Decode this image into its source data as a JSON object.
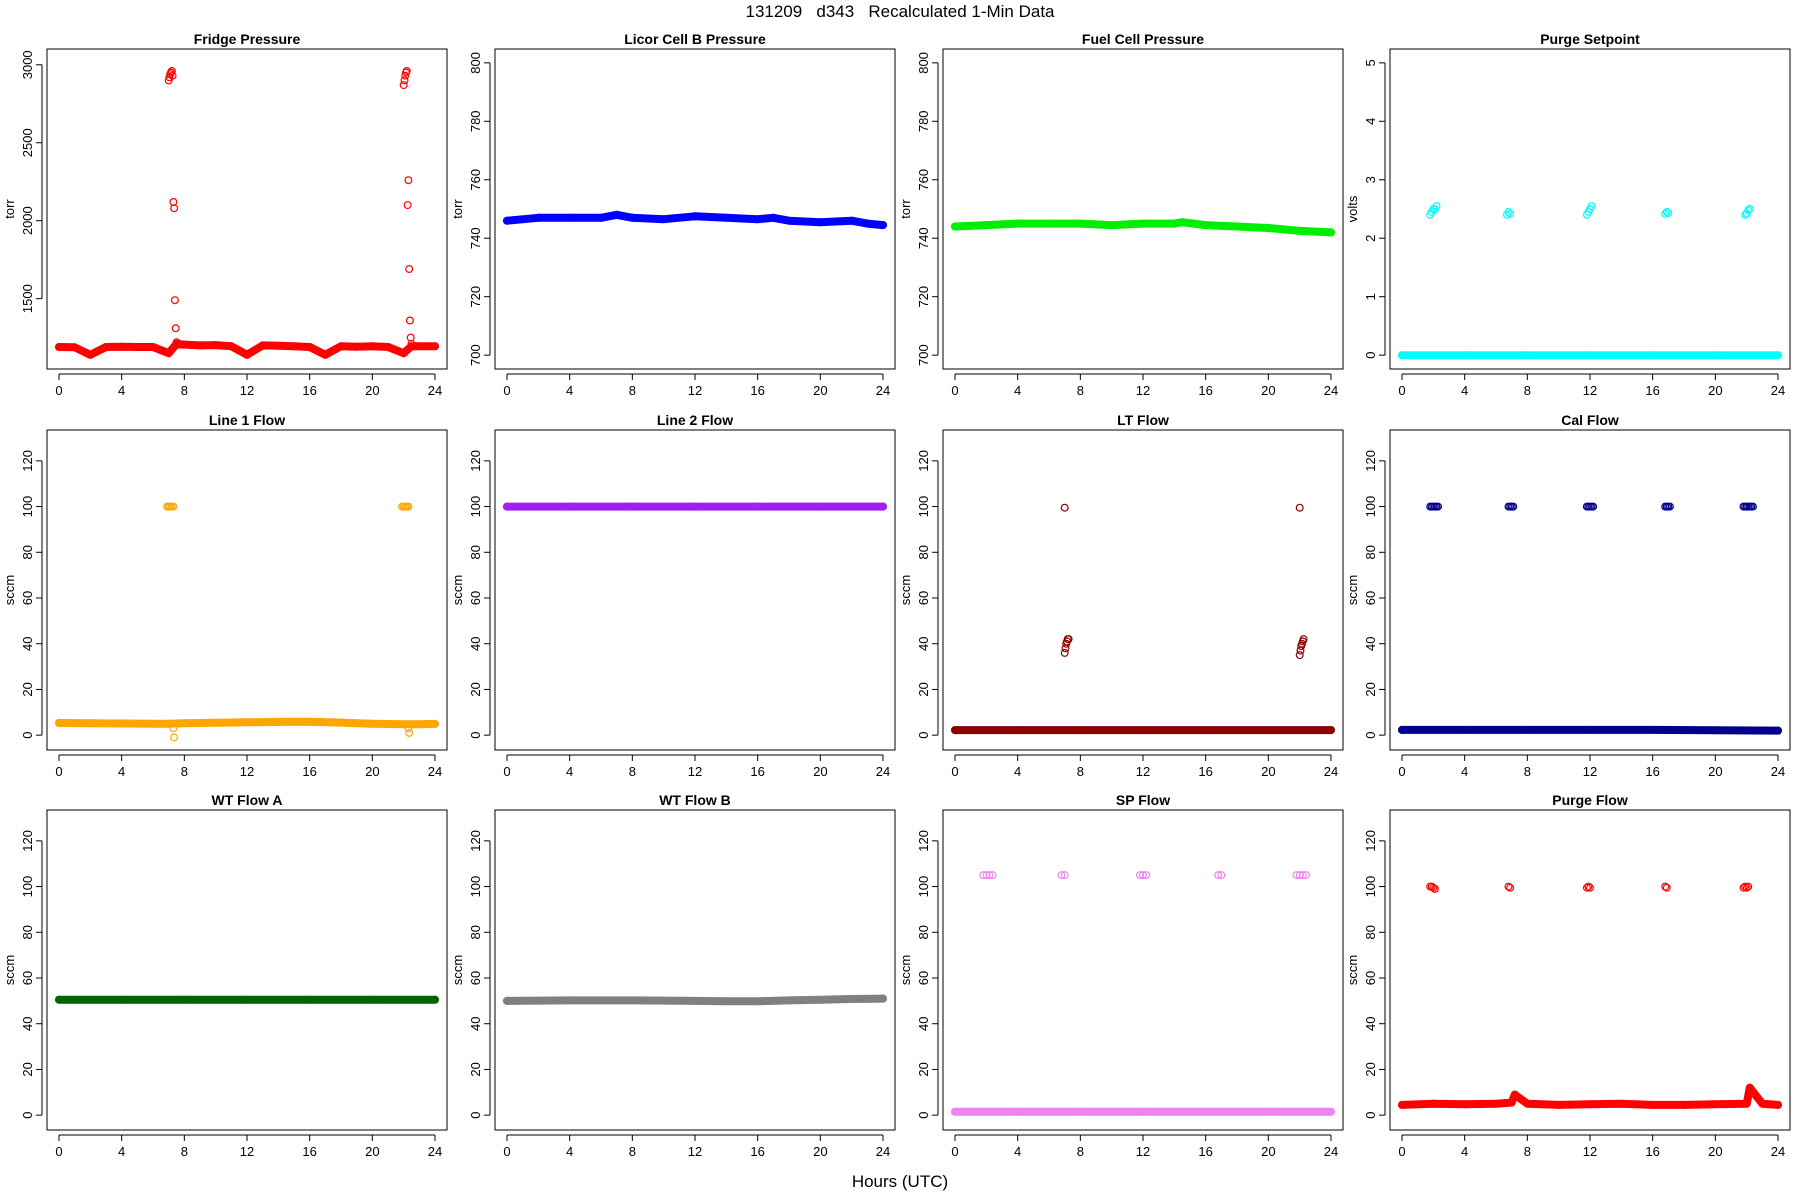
{
  "figure": {
    "title": "131209   d343   Recalculated 1-Min Data",
    "x_axis_label": "Hours (UTC)"
  },
  "chart_data": [
    {
      "type": "scatter",
      "title": "Fridge Pressure",
      "ylabel": "torr",
      "color": "#ff0000",
      "xlim": [
        0,
        24
      ],
      "ylim": [
        1100,
        3050
      ],
      "xticks": [
        0,
        4,
        8,
        12,
        16,
        20,
        24
      ],
      "yticks": [
        1500,
        2000,
        2500,
        3000
      ],
      "series": [
        {
          "x": [
            0,
            1,
            2,
            3,
            4,
            5,
            6,
            7,
            7.5,
            8,
            9,
            10,
            11,
            12,
            13,
            14,
            15,
            16,
            17,
            18,
            19,
            20,
            21,
            22,
            22.5,
            23,
            24
          ],
          "y": [
            1190,
            1188,
            1140,
            1190,
            1192,
            1190,
            1190,
            1150,
            1210,
            1205,
            1200,
            1202,
            1195,
            1140,
            1200,
            1198,
            1195,
            1190,
            1140,
            1195,
            1192,
            1195,
            1190,
            1150,
            1195,
            1195,
            1195
          ]
        },
        {
          "x": [
            7.0,
            7.05,
            7.1,
            7.15,
            7.2,
            7.25,
            7.3,
            7.35
          ],
          "y": [
            2900,
            2920,
            2940,
            2950,
            2960,
            2930,
            2120,
            2080
          ]
        },
        {
          "x": [
            7.4,
            7.45,
            7.5
          ],
          "y": [
            1490,
            1310,
            1220
          ]
        },
        {
          "x": [
            22.0,
            22.05,
            22.1,
            22.15,
            22.2,
            22.25,
            22.3,
            22.35,
            22.4,
            22.45,
            22.5
          ],
          "y": [
            2870,
            2900,
            2930,
            2950,
            2960,
            2100,
            2260,
            1690,
            1360,
            1250,
            1210
          ]
        }
      ]
    },
    {
      "type": "scatter",
      "title": "Licor Cell B Pressure",
      "ylabel": "torr",
      "color": "#0000ff",
      "xlim": [
        0,
        24
      ],
      "ylim": [
        698,
        802
      ],
      "xticks": [
        0,
        4,
        8,
        12,
        16,
        20,
        24
      ],
      "yticks": [
        700,
        720,
        740,
        760,
        780,
        800
      ],
      "series": [
        {
          "x": [
            0,
            2,
            4,
            6,
            7,
            8,
            10,
            12,
            14,
            16,
            17,
            18,
            20,
            22,
            23,
            24
          ],
          "y": [
            746,
            747,
            747,
            747,
            748,
            747,
            746.5,
            747.5,
            747,
            746.5,
            747,
            746,
            745.5,
            746,
            745,
            744.5
          ]
        }
      ]
    },
    {
      "type": "scatter",
      "title": "Fuel Cell Pressure",
      "ylabel": "torr",
      "color": "#00ee00",
      "xlim": [
        0,
        24
      ],
      "ylim": [
        698,
        802
      ],
      "xticks": [
        0,
        4,
        8,
        12,
        16,
        20,
        24
      ],
      "yticks": [
        700,
        720,
        740,
        760,
        780,
        800
      ],
      "series": [
        {
          "x": [
            0,
            2,
            4,
            6,
            8,
            10,
            12,
            14,
            14.5,
            16,
            18,
            20,
            22,
            24
          ],
          "y": [
            744,
            744.5,
            745,
            745,
            745,
            744.5,
            745,
            745,
            745.5,
            744.5,
            744,
            743.5,
            742.5,
            742
          ]
        }
      ]
    },
    {
      "type": "scatter",
      "title": "Purge Setpoint",
      "ylabel": "volts",
      "color": "#00ffff",
      "xlim": [
        0,
        24
      ],
      "ylim": [
        -0.1,
        5.1
      ],
      "xticks": [
        0,
        4,
        8,
        12,
        16,
        20,
        24
      ],
      "yticks": [
        0,
        1,
        2,
        3,
        4,
        5
      ],
      "series": [
        {
          "x": [
            0,
            4,
            8,
            12,
            16,
            20,
            24
          ],
          "y": [
            0,
            0,
            0,
            0,
            0,
            0,
            0
          ]
        },
        {
          "x": [
            1.8,
            1.9,
            2.0,
            2.1,
            2.2
          ],
          "y": [
            2.4,
            2.45,
            2.5,
            2.5,
            2.55
          ]
        },
        {
          "x": [
            6.7,
            6.8,
            6.9
          ],
          "y": [
            2.4,
            2.45,
            2.42
          ]
        },
        {
          "x": [
            11.8,
            11.9,
            12.0,
            12.1
          ],
          "y": [
            2.4,
            2.45,
            2.5,
            2.55
          ]
        },
        {
          "x": [
            16.8,
            16.9,
            17.0
          ],
          "y": [
            2.42,
            2.45,
            2.43
          ]
        },
        {
          "x": [
            21.9,
            22.0,
            22.1,
            22.2
          ],
          "y": [
            2.4,
            2.42,
            2.48,
            2.5
          ]
        }
      ]
    },
    {
      "type": "scatter",
      "title": "Line 1 Flow",
      "ylabel": "sccm",
      "color": "#ffa500",
      "xlim": [
        0,
        24
      ],
      "ylim": [
        -3,
        130
      ],
      "xticks": [
        0,
        4,
        8,
        12,
        16,
        20,
        24
      ],
      "yticks": [
        0,
        20,
        40,
        60,
        80,
        100,
        120
      ],
      "series": [
        {
          "x": [
            0,
            2,
            4,
            6,
            7,
            8,
            10,
            12,
            14,
            16,
            18,
            20,
            22,
            23,
            24
          ],
          "y": [
            5.3,
            5.2,
            5.1,
            5.0,
            5.0,
            5.2,
            5.4,
            5.6,
            5.8,
            5.9,
            5.5,
            5.0,
            4.8,
            4.8,
            4.9
          ]
        },
        {
          "x": [
            6.9,
            7.0,
            7.1,
            7.2,
            7.3
          ],
          "y": [
            100,
            100,
            100,
            100,
            100
          ]
        },
        {
          "x": [
            7.3,
            7.35
          ],
          "y": [
            3,
            -1
          ]
        },
        {
          "x": [
            21.9,
            22.0,
            22.1,
            22.2,
            22.3
          ],
          "y": [
            100,
            100,
            100,
            100,
            100
          ]
        },
        {
          "x": [
            22.3,
            22.35
          ],
          "y": [
            3,
            1
          ]
        }
      ]
    },
    {
      "type": "scatter",
      "title": "Line 2 Flow",
      "ylabel": "sccm",
      "color": "#a020f0",
      "xlim": [
        0,
        24
      ],
      "ylim": [
        -3,
        130
      ],
      "xticks": [
        0,
        4,
        8,
        12,
        16,
        20,
        24
      ],
      "yticks": [
        0,
        20,
        40,
        60,
        80,
        100,
        120
      ],
      "series": [
        {
          "x": [
            0,
            4,
            8,
            12,
            16,
            20,
            24
          ],
          "y": [
            100,
            100,
            100,
            100,
            100,
            100,
            100
          ]
        }
      ]
    },
    {
      "type": "scatter",
      "title": "LT Flow",
      "ylabel": "sccm",
      "color": "#8b0000",
      "xlim": [
        0,
        24
      ],
      "ylim": [
        -3,
        130
      ],
      "xticks": [
        0,
        4,
        8,
        12,
        16,
        20,
        24
      ],
      "yticks": [
        0,
        20,
        40,
        60,
        80,
        100,
        120
      ],
      "series": [
        {
          "x": [
            0,
            4,
            8,
            12,
            16,
            20,
            24
          ],
          "y": [
            2.2,
            2.2,
            2.2,
            2.2,
            2.2,
            2.2,
            2.2
          ]
        },
        {
          "x": [
            7.0,
            7.05,
            7.1,
            7.15,
            7.2,
            7.25
          ],
          "y": [
            36,
            38,
            40,
            41,
            42,
            42
          ]
        },
        {
          "x": [
            22.0,
            22.05,
            22.1,
            22.15,
            22.2,
            22.25
          ],
          "y": [
            35,
            37,
            39,
            40,
            41,
            42
          ]
        },
        {
          "x": [
            7.0,
            22.0
          ],
          "y": [
            99.5,
            99.5
          ]
        }
      ]
    },
    {
      "type": "scatter",
      "title": "Cal Flow",
      "ylabel": "sccm",
      "color": "#00008b",
      "xlim": [
        0,
        24
      ],
      "ylim": [
        -3,
        130
      ],
      "xticks": [
        0,
        4,
        8,
        12,
        16,
        20,
        24
      ],
      "yticks": [
        0,
        20,
        40,
        60,
        80,
        100,
        120
      ],
      "series": [
        {
          "x": [
            0,
            4,
            8,
            12,
            16,
            20,
            24
          ],
          "y": [
            2.3,
            2.3,
            2.3,
            2.3,
            2.3,
            2.1,
            2.0
          ]
        },
        {
          "x": [
            1.8,
            1.9,
            2.0,
            2.1,
            2.2,
            2.3,
            6.8,
            6.9,
            7.0,
            7.1,
            11.8,
            11.9,
            12.0,
            12.1,
            12.2,
            16.8,
            16.9,
            17.0,
            17.1,
            21.8,
            21.9,
            22.0,
            22.1,
            22.2,
            22.3,
            22.4
          ],
          "y": [
            100,
            100,
            100,
            100,
            100,
            100,
            100,
            100,
            100,
            100,
            100,
            100,
            100,
            100,
            100,
            100,
            100,
            100,
            100,
            100,
            100,
            100,
            100,
            100,
            100,
            100
          ]
        }
      ]
    },
    {
      "type": "scatter",
      "title": "WT Flow A",
      "ylabel": "sccm",
      "color": "#006400",
      "xlim": [
        0,
        24
      ],
      "ylim": [
        -3,
        130
      ],
      "xticks": [
        0,
        4,
        8,
        12,
        16,
        20,
        24
      ],
      "yticks": [
        0,
        20,
        40,
        60,
        80,
        100,
        120
      ],
      "series": [
        {
          "x": [
            0,
            4,
            8,
            12,
            16,
            20,
            24
          ],
          "y": [
            50.5,
            50.5,
            50.5,
            50.5,
            50.5,
            50.5,
            50.5
          ]
        }
      ]
    },
    {
      "type": "scatter",
      "title": "WT Flow B",
      "ylabel": "sccm",
      "color": "#808080",
      "xlim": [
        0,
        24
      ],
      "ylim": [
        -3,
        130
      ],
      "xticks": [
        0,
        4,
        8,
        12,
        16,
        20,
        24
      ],
      "yticks": [
        0,
        20,
        40,
        60,
        80,
        100,
        120
      ],
      "series": [
        {
          "x": [
            0,
            4,
            8,
            12,
            14,
            16,
            18,
            20,
            22,
            24
          ],
          "y": [
            50,
            50.2,
            50.2,
            50,
            49.8,
            49.8,
            50.2,
            50.5,
            50.8,
            51
          ]
        }
      ]
    },
    {
      "type": "scatter",
      "title": "SP Flow",
      "ylabel": "sccm",
      "color": "#ee82ee",
      "xlim": [
        0,
        24
      ],
      "ylim": [
        -3,
        130
      ],
      "xticks": [
        0,
        4,
        8,
        12,
        16,
        20,
        24
      ],
      "yticks": [
        0,
        20,
        40,
        60,
        80,
        100,
        120
      ],
      "series": [
        {
          "x": [
            0,
            4,
            8,
            12,
            16,
            20,
            24
          ],
          "y": [
            1.5,
            1.5,
            1.5,
            1.5,
            1.5,
            1.5,
            1.5
          ]
        },
        {
          "x": [
            1.8,
            2.0,
            2.2,
            2.4,
            6.8,
            7.0,
            11.8,
            12.0,
            12.2,
            16.8,
            17.0,
            21.8,
            22.0,
            22.2,
            22.4
          ],
          "y": [
            105,
            105,
            105,
            105,
            105,
            105,
            105,
            105,
            105,
            105,
            105,
            105,
            105,
            105,
            105
          ]
        }
      ]
    },
    {
      "type": "scatter",
      "title": "Purge Flow",
      "ylabel": "sccm",
      "color": "#ff0000",
      "xlim": [
        0,
        24
      ],
      "ylim": [
        -3,
        130
      ],
      "xticks": [
        0,
        4,
        8,
        12,
        16,
        20,
        24
      ],
      "yticks": [
        0,
        20,
        40,
        60,
        80,
        100,
        120
      ],
      "series": [
        {
          "x": [
            0,
            2,
            4,
            6,
            7,
            7.2,
            8,
            10,
            12,
            14,
            16,
            18,
            20,
            22,
            22.2,
            23,
            24
          ],
          "y": [
            4.5,
            5,
            4.8,
            5,
            5.5,
            9,
            5,
            4.5,
            4.8,
            5,
            4.5,
            4.5,
            4.8,
            5,
            12,
            5,
            4.5
          ]
        },
        {
          "x": [
            1.8,
            1.9,
            2.0,
            2.1,
            6.8,
            6.9,
            11.8,
            11.9,
            12.0,
            16.8,
            16.9,
            21.8,
            21.9,
            22.0,
            22.1
          ],
          "y": [
            100,
            100,
            99.5,
            99,
            100,
            99.5,
            99.5,
            100,
            99.5,
            100,
            99.5,
            99.5,
            100,
            99.5,
            100
          ]
        }
      ]
    }
  ]
}
